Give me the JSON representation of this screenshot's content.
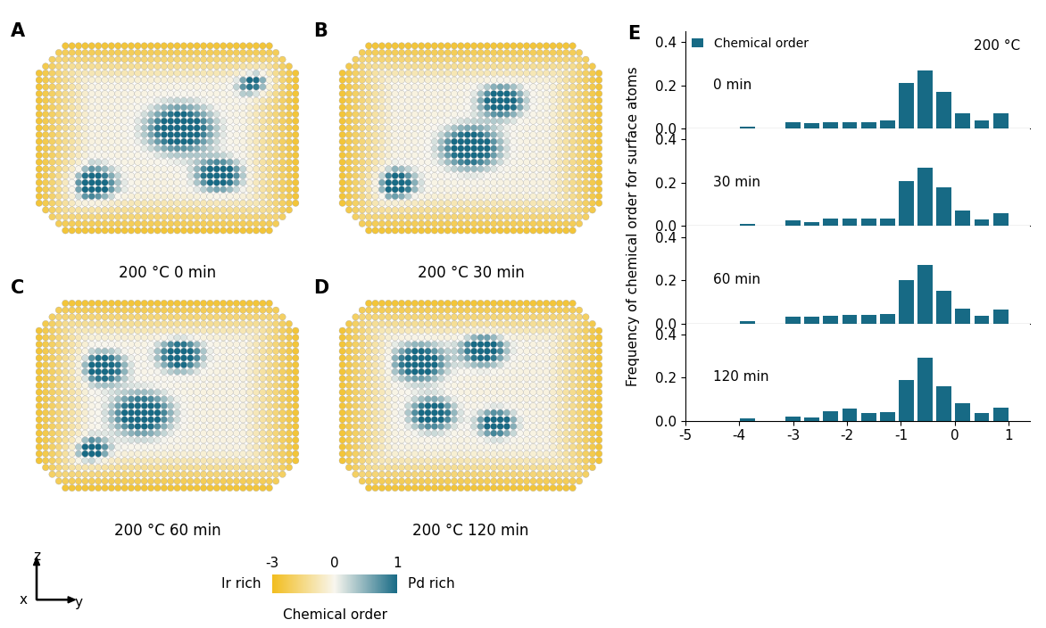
{
  "panel_labels": [
    "A",
    "B",
    "C",
    "D",
    "E"
  ],
  "particle_panels": [
    {
      "label": "A",
      "caption": "200 °C 0 min"
    },
    {
      "label": "B",
      "caption": "200 °C 30 min"
    },
    {
      "label": "C",
      "caption": "200 °C 60 min"
    },
    {
      "label": "D",
      "caption": "200 °C 120 min"
    }
  ],
  "colorbar": {
    "title": "Chemical order",
    "left_label": "Ir rich",
    "right_label": "Pd rich",
    "range": [
      -3,
      1
    ],
    "center": 0,
    "ticks": [
      -3,
      0,
      1
    ],
    "colors": [
      "#f2bd1d",
      "#f8f6ee",
      "#176a85"
    ]
  },
  "axes_indicator": {
    "vertical": "z",
    "origin": "x",
    "horizontal": "y"
  },
  "chart_data": [
    {
      "type": "bar",
      "ylabel": "Frequency of chemical order for surface atoms",
      "annotation": "0 min",
      "corner_note": "200 °C",
      "legend": "upper left",
      "tick_labels": "y",
      "x": [
        -3.85,
        -3.0,
        -2.65,
        -2.3,
        -1.95,
        -1.6,
        -1.25,
        -0.9,
        -0.55,
        -0.2,
        0.15,
        0.5,
        0.85
      ],
      "series": [
        {
          "name": "Chemical order",
          "color": "#176a85",
          "values": [
            0.01,
            0.03,
            0.025,
            0.03,
            0.03,
            0.03,
            0.04,
            0.21,
            0.27,
            0.17,
            0.07,
            0.04,
            0.07
          ]
        }
      ],
      "xlim": [
        -5,
        1.4
      ],
      "xticks": [
        -5,
        -4,
        -3,
        -2,
        -1,
        0,
        1
      ],
      "ylim": [
        0,
        0.45
      ],
      "yticks": [
        {
          "value": 0,
          "label": "0.0"
        },
        {
          "value": 0.2,
          "label": "0.2"
        },
        {
          "value": 0.4,
          "label": "0.4"
        }
      ]
    },
    {
      "type": "bar",
      "annotation": "30 min",
      "tick_labels": "y",
      "x": [
        -3.85,
        -3.0,
        -2.65,
        -2.3,
        -1.95,
        -1.6,
        -1.25,
        -0.9,
        -0.55,
        -0.2,
        0.15,
        0.5,
        0.85
      ],
      "series": [
        {
          "name": "Chemical order",
          "color": "#176a85",
          "values": [
            0.01,
            0.025,
            0.02,
            0.035,
            0.035,
            0.035,
            0.035,
            0.21,
            0.27,
            0.18,
            0.07,
            0.03,
            0.06
          ]
        }
      ],
      "xlim": [
        -5,
        1.4
      ],
      "xticks": [
        -5,
        -4,
        -3,
        -2,
        -1,
        0,
        1
      ],
      "ylim": [
        0,
        0.45
      ],
      "yticks": [
        {
          "value": 0,
          "label": "0.0"
        },
        {
          "value": 0.2,
          "label": "0.2"
        },
        {
          "value": 0.4,
          "label": "0.4"
        }
      ]
    },
    {
      "type": "bar",
      "annotation": "60 min",
      "tick_labels": "y",
      "x": [
        -3.85,
        -3.0,
        -2.65,
        -2.3,
        -1.95,
        -1.6,
        -1.25,
        -0.9,
        -0.55,
        -0.2,
        0.15,
        0.5,
        0.85
      ],
      "series": [
        {
          "name": "Chemical order",
          "color": "#176a85",
          "values": [
            0.01,
            0.03,
            0.03,
            0.035,
            0.04,
            0.04,
            0.045,
            0.2,
            0.27,
            0.15,
            0.07,
            0.035,
            0.065
          ]
        }
      ],
      "xlim": [
        -5,
        1.4
      ],
      "xticks": [
        -5,
        -4,
        -3,
        -2,
        -1,
        0,
        1
      ],
      "ylim": [
        0,
        0.45
      ],
      "yticks": [
        {
          "value": 0,
          "label": "0.0"
        },
        {
          "value": 0.2,
          "label": "0.2"
        },
        {
          "value": 0.4,
          "label": "0.4"
        }
      ]
    },
    {
      "type": "bar",
      "annotation": "120 min",
      "x": [
        -3.85,
        -3.0,
        -2.65,
        -2.3,
        -1.95,
        -1.6,
        -1.25,
        -0.9,
        -0.55,
        -0.2,
        0.15,
        0.5,
        0.85
      ],
      "series": [
        {
          "name": "Chemical order",
          "color": "#176a85",
          "values": [
            0.01,
            0.02,
            0.015,
            0.045,
            0.055,
            0.035,
            0.04,
            0.19,
            0.29,
            0.16,
            0.08,
            0.035,
            0.06
          ]
        }
      ],
      "xlim": [
        -5,
        1.4
      ],
      "xticks": [
        -5,
        -4,
        -3,
        -2,
        -1,
        0,
        1
      ],
      "ylim": [
        0,
        0.45
      ],
      "yticks": [
        {
          "value": 0,
          "label": "0.0"
        },
        {
          "value": 0.2,
          "label": "0.2"
        },
        {
          "value": 0.4,
          "label": "0.4"
        }
      ]
    }
  ]
}
